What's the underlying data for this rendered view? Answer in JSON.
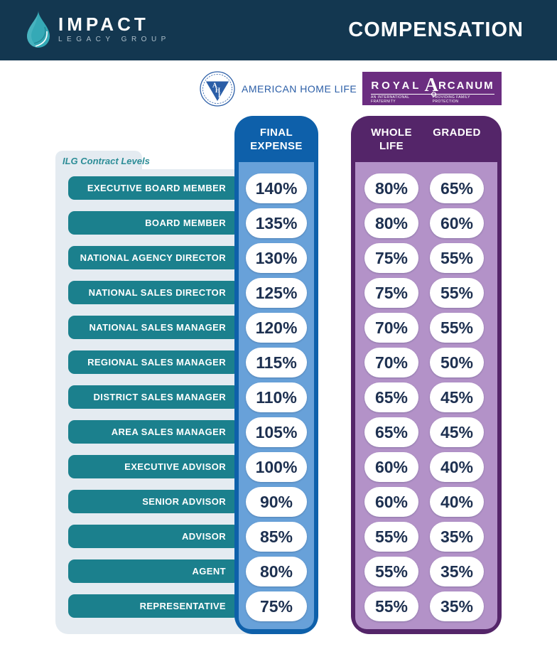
{
  "header": {
    "brand_name": "IMPACT",
    "brand_subtitle": "LEGACY GROUP",
    "title": "COMPENSATION"
  },
  "logos": {
    "american_home_life": {
      "name": "AMERICAN HOME LIFE",
      "monogram": "AHL"
    },
    "royal_arcanum": {
      "word1": "ROYAL",
      "word2_initial": "A",
      "word2_rest": "RCANUM",
      "tagline_left": "AN INTERNATIONAL FRATERNITY",
      "tagline_right": "PROVIDING FAMILY PROTECTION"
    }
  },
  "table": {
    "levels_label": "ILG Contract Levels",
    "final_expense_header_line1": "FINAL",
    "final_expense_header_line2": "EXPENSE",
    "whole_life_header_line1": "WHOLE",
    "whole_life_header_line2": "LIFE",
    "graded_header": "GRADED",
    "rows": [
      {
        "level": "EXECUTIVE BOARD MEMBER",
        "final_expense": "140%",
        "whole_life": "80%",
        "graded": "65%"
      },
      {
        "level": "BOARD MEMBER",
        "final_expense": "135%",
        "whole_life": "80%",
        "graded": "60%"
      },
      {
        "level": "NATIONAL AGENCY DIRECTOR",
        "final_expense": "130%",
        "whole_life": "75%",
        "graded": "55%"
      },
      {
        "level": "NATIONAL SALES DIRECTOR",
        "final_expense": "125%",
        "whole_life": "75%",
        "graded": "55%"
      },
      {
        "level": "NATIONAL SALES MANAGER",
        "final_expense": "120%",
        "whole_life": "70%",
        "graded": "55%"
      },
      {
        "level": "REGIONAL SALES MANAGER",
        "final_expense": "115%",
        "whole_life": "70%",
        "graded": "50%"
      },
      {
        "level": "DISTRICT SALES MANAGER",
        "final_expense": "110%",
        "whole_life": "65%",
        "graded": "45%"
      },
      {
        "level": "AREA SALES MANAGER",
        "final_expense": "105%",
        "whole_life": "65%",
        "graded": "45%"
      },
      {
        "level": "EXECUTIVE ADVISOR",
        "final_expense": "100%",
        "whole_life": "60%",
        "graded": "40%"
      },
      {
        "level": "SENIOR ADVISOR",
        "final_expense": "90%",
        "whole_life": "60%",
        "graded": "40%"
      },
      {
        "level": "ADVISOR",
        "final_expense": "85%",
        "whole_life": "55%",
        "graded": "35%"
      },
      {
        "level": "AGENT",
        "final_expense": "80%",
        "whole_life": "55%",
        "graded": "35%"
      },
      {
        "level": "REPRESENTATIVE",
        "final_expense": "75%",
        "whole_life": "55%",
        "graded": "35%"
      }
    ]
  },
  "chart_data": {
    "type": "table",
    "title": "COMPENSATION",
    "columns": [
      "ILG Contract Level",
      "American Home Life — Final Expense",
      "Royal Arcanum — Whole Life",
      "Royal Arcanum — Graded"
    ],
    "rows": [
      [
        "EXECUTIVE BOARD MEMBER",
        140,
        80,
        65
      ],
      [
        "BOARD MEMBER",
        135,
        80,
        60
      ],
      [
        "NATIONAL AGENCY DIRECTOR",
        130,
        75,
        55
      ],
      [
        "NATIONAL SALES DIRECTOR",
        125,
        75,
        55
      ],
      [
        "NATIONAL SALES MANAGER",
        120,
        70,
        55
      ],
      [
        "REGIONAL SALES MANAGER",
        115,
        70,
        50
      ],
      [
        "DISTRICT SALES MANAGER",
        110,
        65,
        45
      ],
      [
        "AREA SALES MANAGER",
        105,
        65,
        45
      ],
      [
        "EXECUTIVE ADVISOR",
        100,
        60,
        40
      ],
      [
        "SENIOR ADVISOR",
        90,
        60,
        40
      ],
      [
        "ADVISOR",
        85,
        55,
        35
      ],
      [
        "AGENT",
        80,
        55,
        35
      ],
      [
        "REPRESENTATIVE",
        75,
        55,
        35
      ]
    ],
    "units": "percent"
  },
  "colors": {
    "header_navy": "#133750",
    "teal_pill": "#1b808d",
    "teal_label": "#2d8d97",
    "panel_gray": "#e4ebf1",
    "blue_dark": "#0e60aa",
    "blue_light": "#68a1d9",
    "purple_dark": "#542569",
    "purple_light": "#b392c8",
    "logo_purple": "#6b2d80",
    "logo_blue": "#2b5ea7",
    "value_navy": "#1d3050",
    "drop_teal": "#35a9b6"
  }
}
